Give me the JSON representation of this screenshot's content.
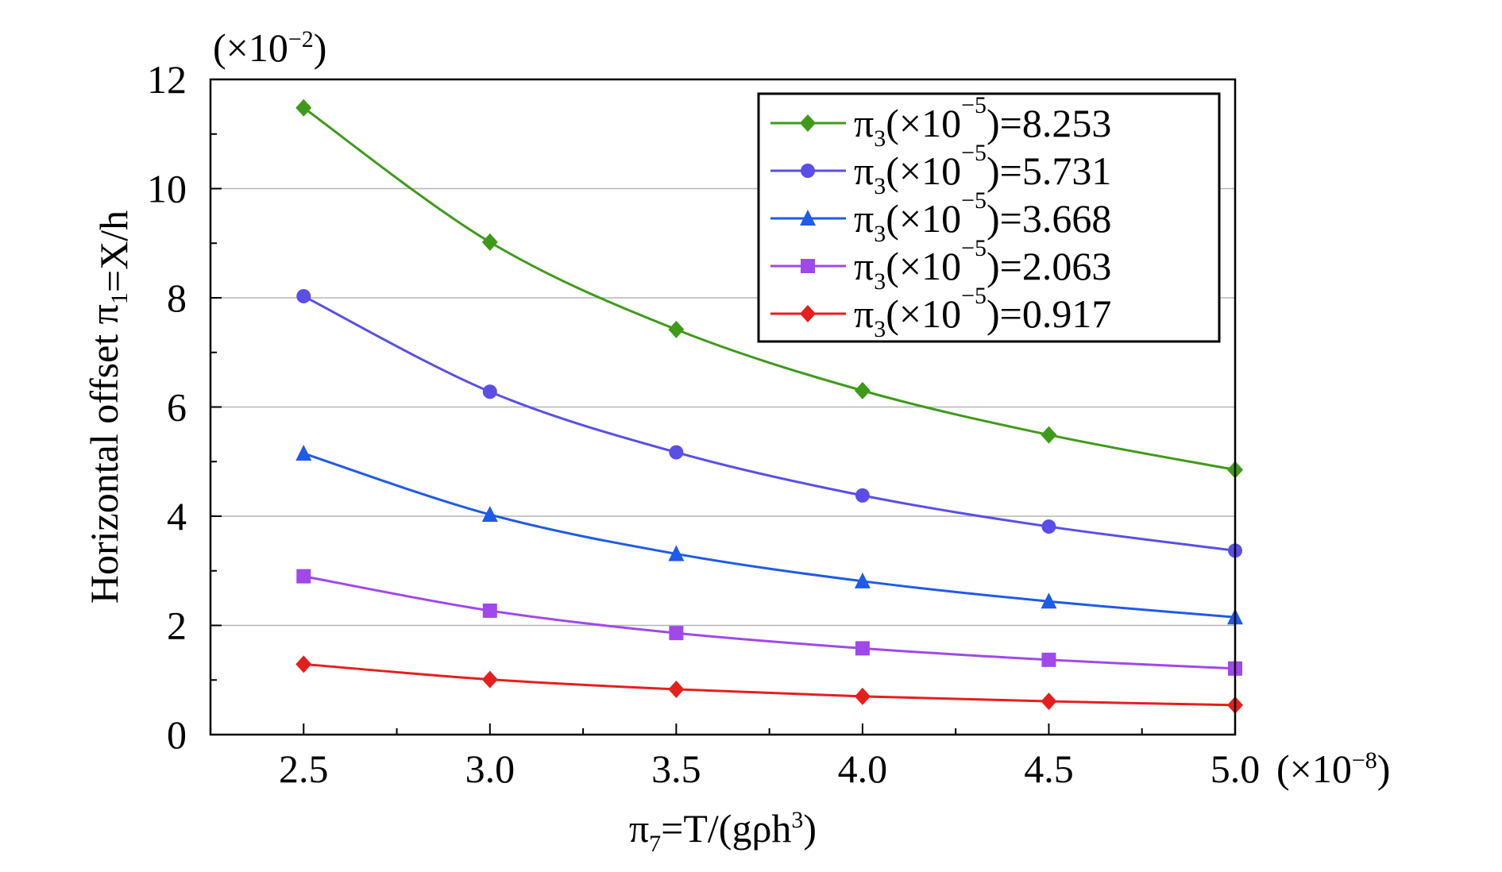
{
  "chart_data": {
    "type": "line",
    "xlabel": {
      "pre": "π",
      "sub": "7",
      "mid": "=T/(gρh",
      "sup": "3",
      "post": ")"
    },
    "ylabel": {
      "pre": "Horizontal offset π",
      "sub": "1",
      "post": "=X/h"
    },
    "x_multiplier": {
      "pre": "(×10",
      "sup": "−8",
      "post": ")"
    },
    "y_multiplier": {
      "pre": "(×10",
      "sup": "−2",
      "post": ")"
    },
    "xlim": [
      2.25,
      5.0
    ],
    "ylim": [
      0,
      12
    ],
    "x_ticks": [
      2.5,
      3.0,
      3.5,
      4.0,
      4.5,
      5.0
    ],
    "x_tick_labels": [
      "2.5",
      "3.0",
      "3.5",
      "4.0",
      "4.5",
      "5.0"
    ],
    "y_ticks": [
      0,
      2,
      4,
      6,
      8,
      10,
      12
    ],
    "y_tick_labels": [
      "0",
      "2",
      "4",
      "6",
      "8",
      "10",
      "12"
    ],
    "grid": "horizontal",
    "legend_position": "top-right",
    "x": [
      2.5,
      3.0,
      3.5,
      4.0,
      4.5,
      5.0
    ],
    "series": [
      {
        "name": {
          "pre": "π",
          "sub": "3",
          "mid": "(×10",
          "sup": "−5",
          "post": ")=8.253"
        },
        "color": "#3f9a1a",
        "marker": "diamond",
        "values": [
          11.48,
          9.02,
          7.42,
          6.3,
          5.49,
          4.85
        ]
      },
      {
        "name": {
          "pre": "π",
          "sub": "3",
          "mid": "(×10",
          "sup": "−5",
          "post": ")=5.731"
        },
        "color": "#5a4ee6",
        "marker": "circle",
        "values": [
          8.03,
          6.28,
          5.17,
          4.38,
          3.81,
          3.37
        ]
      },
      {
        "name": {
          "pre": "π",
          "sub": "3",
          "mid": "(×10",
          "sup": "−5",
          "post": ")=3.668"
        },
        "color": "#1e5be6",
        "marker": "triangle",
        "values": [
          5.15,
          4.03,
          3.31,
          2.81,
          2.44,
          2.15
        ]
      },
      {
        "name": {
          "pre": "π",
          "sub": "3",
          "mid": "(×10",
          "sup": "−5",
          "post": ")=2.063"
        },
        "color": "#a048ea",
        "marker": "square",
        "values": [
          2.9,
          2.27,
          1.86,
          1.58,
          1.37,
          1.21
        ]
      },
      {
        "name": {
          "pre": "π",
          "sub": "3",
          "mid": "(×10",
          "sup": "−5",
          "post": ")=0.917"
        },
        "color": "#e61e1e",
        "marker": "diamond",
        "values": [
          1.29,
          1.01,
          0.83,
          0.7,
          0.61,
          0.54
        ]
      }
    ]
  }
}
